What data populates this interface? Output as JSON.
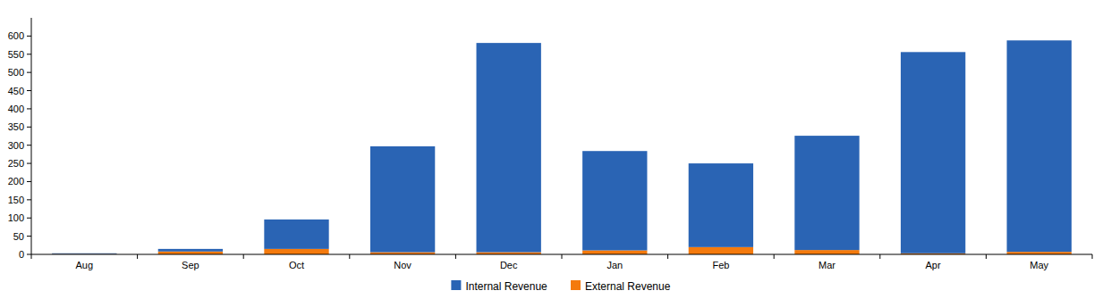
{
  "chart_data": {
    "type": "bar",
    "stacked": true,
    "legend": "bottom",
    "categories": [
      "Aug",
      "Sep",
      "Oct",
      "Nov",
      "Dec",
      "Jan",
      "Feb",
      "Mar",
      "Apr",
      "May"
    ],
    "series": [
      {
        "name": "Internal Revenue",
        "color": "#2a64b4",
        "values": [
          2,
          7,
          81,
          291,
          575,
          273,
          230,
          314,
          553,
          581
        ]
      },
      {
        "name": "External Revenue",
        "color": "#f47a0d",
        "values": [
          1,
          8,
          15,
          6,
          6,
          11,
          20,
          12,
          3,
          7
        ]
      }
    ],
    "ylim": [
      0,
      650
    ],
    "yticks": [
      0,
      50,
      100,
      150,
      200,
      250,
      300,
      350,
      400,
      450,
      500,
      550,
      600
    ]
  }
}
